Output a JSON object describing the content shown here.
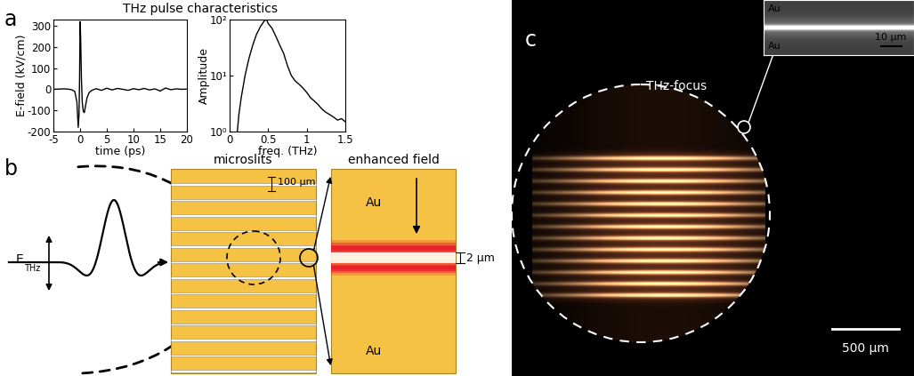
{
  "chart_data": [
    {
      "type": "line",
      "xlabel": "time (ps)",
      "ylabel": "E-field (kV/cm)",
      "color": "#000000",
      "x": [
        -5,
        -3,
        -2,
        -1.5,
        -1,
        -0.6,
        -0.35,
        -0.2,
        -0.1,
        0,
        0.1,
        0.25,
        0.4,
        0.6,
        0.8,
        1.0,
        1.3,
        1.7,
        2.2,
        3,
        4,
        5,
        6,
        7,
        8,
        9,
        10,
        11,
        12,
        13,
        14,
        15,
        16,
        17,
        18,
        19,
        20
      ],
      "values": [
        0,
        2,
        0,
        -3,
        -10,
        -60,
        -180,
        -120,
        50,
        320,
        250,
        50,
        -60,
        -105,
        -110,
        -80,
        -40,
        -15,
        -5,
        3,
        -5,
        5,
        -3,
        4,
        0,
        -5,
        3,
        -2,
        4,
        -3,
        2,
        -8,
        6,
        -2,
        2,
        0,
        1
      ],
      "xlim": [
        -5,
        20
      ],
      "ylim": [
        -200,
        330
      ],
      "xticks": [
        -5,
        0,
        5,
        10,
        15,
        20
      ],
      "yticks": [
        -200,
        -100,
        0,
        100,
        200,
        300
      ]
    },
    {
      "type": "line",
      "log": "y",
      "xlabel": "freq. (THz)",
      "ylabel": "Amplitude",
      "color": "#000000",
      "x": [
        0.1,
        0.12,
        0.15,
        0.2,
        0.25,
        0.3,
        0.35,
        0.4,
        0.45,
        0.48,
        0.5,
        0.55,
        0.6,
        0.65,
        0.7,
        0.75,
        0.8,
        0.85,
        0.9,
        0.95,
        1.0,
        1.05,
        1.1,
        1.15,
        1.2,
        1.25,
        1.3,
        1.35,
        1.4,
        1.45,
        1.5
      ],
      "values": [
        1,
        2,
        4,
        10,
        20,
        35,
        55,
        75,
        95,
        100,
        85,
        70,
        50,
        35,
        25,
        15,
        10,
        8,
        7,
        6,
        5,
        4,
        3.5,
        3,
        2.5,
        2.2,
        2,
        1.8,
        1.6,
        1.7,
        1.5
      ],
      "xlim": [
        0,
        1.5
      ],
      "ylim": [
        1,
        100
      ],
      "xticks": [
        0,
        0.5,
        1,
        1.5
      ],
      "yticks": [
        {
          "value": 1,
          "label": "10⁰"
        },
        {
          "value": 10,
          "label": "10¹"
        },
        {
          "value": 100,
          "label": "10²"
        }
      ]
    }
  ],
  "panels": {
    "a": {
      "label": "a",
      "title": "THz pulse characteristics"
    },
    "b": {
      "label": "b",
      "field_label": {
        "text": "E",
        "subscript": "THz"
      },
      "microslits": {
        "title": "microslits",
        "pitch_label": "100 µm"
      },
      "enhanced_field": {
        "title": "enhanced field",
        "top": "Au",
        "bottom": "Au",
        "gap_label": "2 µm"
      }
    },
    "c": {
      "label": "c",
      "focus_label": "THz-focus",
      "scale_label": "500 µm",
      "inset": {
        "top": "Au",
        "bottom": "Au",
        "scale_label": "10 µm"
      }
    }
  }
}
